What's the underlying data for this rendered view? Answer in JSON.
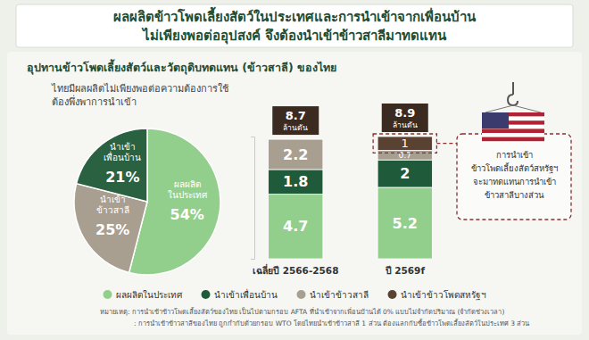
{
  "title": [
    "ผลผลิตข้าวโพดเลี้ยงสัตว์ในประเทศและการนำเข้าจากเพื่อนบ้าน",
    "ไม่เพียงพอต่ออุปสงค์ จึงต้องนำเข้าข้าวสาลีมาทดแทน"
  ],
  "section_title": "อุปทานข้าวโพดเลี้ยงสัตว์และวัตถุดิบทดแทน (ข้าวสาลี) ของไทย",
  "notes": [
    "หมายเหตุ: การนำเข้าข้าวโพดเลี้ยงสัตว์ของไทย เป็นไปตามกรอบ AFTA ที่นำเข้าจากเพื่อนบ้านได้ 0% แบบไม่จำกัดปริมาณ (จำกัดช่วงเวลา)",
    ": การนำเข้าข้าวสาลีของไทย ถูกกำกับด้วยกรอบ WTO โดยไทยนำเข้าข้าวสาลี 1 ส่วน ต้องแลกกับซื้อข้าวโพดเลี้ยงสัตว์ในประเทศ 3 ส่วน"
  ],
  "chart_data": [
    {
      "type": "pie",
      "subtitle": "ไทยมีผลผลิตไม่เพียงพอต่อความต้องการใช้\nต้องพึ่งพาการนำเข้า",
      "categories": [
        "ผลผลิต\nในประเทศ",
        "นำเข้า\nข้าวสาลี",
        "นำเข้า\nเพื่อนบ้าน"
      ],
      "values": [
        54,
        25,
        21
      ],
      "value_labels": [
        "54%",
        "25%",
        "21%"
      ],
      "colors": [
        "#93cf8c",
        "#a89f91",
        "#2a6141"
      ],
      "data_labels": true
    },
    {
      "type": "bar",
      "stacked": true,
      "categories": [
        "เฉลี่ยปี 2566-2568",
        "ปี 2569f"
      ],
      "series": [
        {
          "name": "ผลผลิตในประเทศ",
          "color": "#93cf8c",
          "values": [
            4.7,
            5.2
          ]
        },
        {
          "name": "นำเข้าเพื่อนบ้าน",
          "color": "#1f5a3a",
          "values": [
            1.8,
            2
          ]
        },
        {
          "name": "นำเข้าข้าวสาลี",
          "color": "#a89f91",
          "values": [
            2.2,
            0.7
          ]
        },
        {
          "name": "นำเข้าข้าวโพดสหรัฐฯ",
          "color": "#5a4232",
          "values": [
            null,
            1
          ]
        }
      ],
      "totals": [
        8.7,
        8.9
      ],
      "totals_unit": "ล้านตัน",
      "ylim": [
        0,
        8.9
      ],
      "yticks": [
        0,
        8.9
      ],
      "tick_labels": false,
      "data_labels": true,
      "legend": "bottom",
      "annotation": "การนำเข้า\nข้าวโพดเลี้ยงสัตว์สหรัฐฯ\nจะมาทดแทนการนำเข้า\nข้าวสาลีบางส่วน"
    }
  ]
}
